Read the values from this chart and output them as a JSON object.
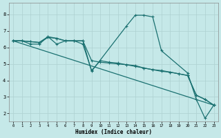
{
  "xlabel": "Humidex (Indice chaleur)",
  "background_color": "#c5e8e8",
  "grid_color": "#aed0d0",
  "line_color": "#1a7070",
  "xlim": [
    -0.5,
    23.5
  ],
  "ylim": [
    1.5,
    8.7
  ],
  "yticks": [
    2,
    3,
    4,
    5,
    6,
    7,
    8
  ],
  "xticks": [
    0,
    1,
    2,
    3,
    4,
    5,
    6,
    7,
    8,
    9,
    10,
    11,
    12,
    13,
    14,
    15,
    16,
    17,
    18,
    19,
    20,
    21,
    22,
    23
  ],
  "line1_x": [
    0,
    1,
    2,
    3,
    4,
    5,
    6,
    7,
    8,
    9,
    10,
    11,
    12,
    13,
    14,
    15,
    16,
    17,
    18,
    19,
    20,
    21,
    22,
    23
  ],
  "line1_y": [
    6.4,
    6.4,
    6.35,
    6.3,
    6.6,
    6.55,
    6.4,
    6.4,
    6.4,
    5.2,
    5.1,
    5.05,
    5.0,
    4.95,
    4.85,
    4.75,
    4.65,
    4.6,
    4.5,
    4.4,
    4.3,
    3.1,
    2.85,
    2.5
  ],
  "line2_x": [
    0,
    1,
    2,
    3,
    4,
    5,
    6,
    7,
    8,
    9,
    10,
    11,
    12,
    13,
    14,
    15,
    16,
    17,
    18,
    19,
    20,
    21,
    22,
    23
  ],
  "line2_y": [
    6.4,
    6.4,
    6.2,
    6.2,
    6.65,
    6.2,
    6.4,
    6.4,
    6.2,
    4.6,
    5.2,
    5.1,
    5.05,
    4.95,
    4.9,
    4.75,
    4.65,
    4.55,
    4.5,
    4.4,
    4.3,
    3.1,
    2.85,
    2.5
  ],
  "line3_x": [
    0,
    1,
    2,
    3,
    4,
    5,
    6,
    7,
    8,
    9,
    13,
    14,
    15,
    16,
    17,
    20,
    21,
    22,
    23
  ],
  "line3_y": [
    6.4,
    6.4,
    6.35,
    6.3,
    6.65,
    6.55,
    6.4,
    6.4,
    6.4,
    4.55,
    7.3,
    7.95,
    7.95,
    7.85,
    5.8,
    4.45,
    2.85,
    1.7,
    2.5
  ],
  "line4_x": [
    0,
    23
  ],
  "line4_y": [
    6.4,
    2.5
  ]
}
